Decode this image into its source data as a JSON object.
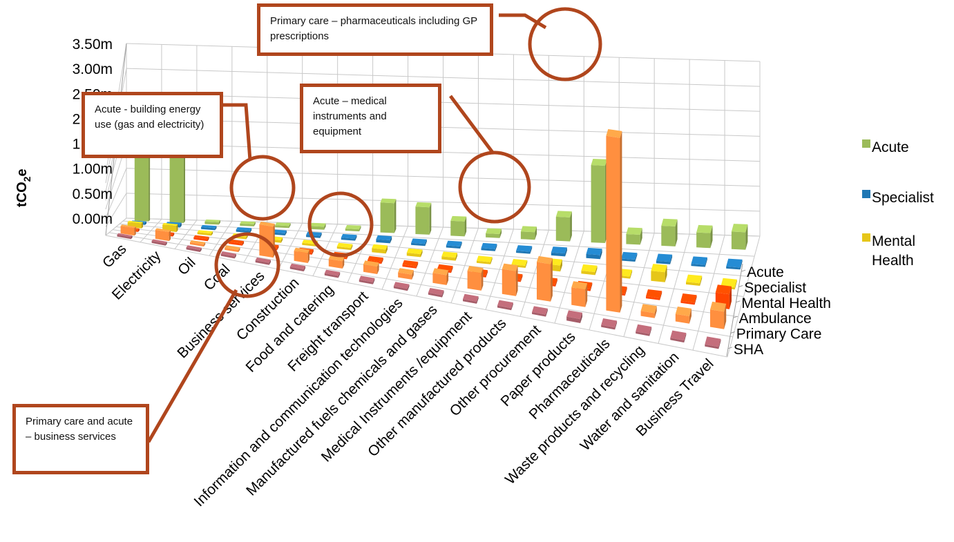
{
  "chart_data": {
    "type": "bar",
    "ylabel": "tCO₂e",
    "ylabel_main": "tCO",
    "ylabel_sub": "2",
    "ylabel_tail": "e",
    "ylim": [
      0,
      3500000
    ],
    "yticks": [
      "0.00m",
      "0.50m",
      "1.00m",
      "1.50m",
      "2.00m",
      "2.50m",
      "3.00m",
      "3.50m"
    ],
    "categories": [
      "Gas",
      "Electricity",
      "Oil",
      "Coal",
      "Business services",
      "Construction",
      "Food and catering",
      "Freight transport",
      "Information and communication technologies",
      "Manufactured fuels chemicals and gases",
      "Medical Instruments /equipment",
      "Other manufactured products",
      "Other procurement",
      "Paper products",
      "Pharmaceuticals",
      "Waste products and recycling",
      "Water and sanitation",
      "Business Travel"
    ],
    "series": [
      {
        "name": "Acute",
        "color": "#9bbb59",
        "values": [
          1300000,
          1400000,
          50000,
          20000,
          30000,
          60000,
          40000,
          600000,
          550000,
          300000,
          80000,
          150000,
          480000,
          1550000,
          200000,
          400000,
          300000,
          350000
        ]
      },
      {
        "name": "Specialist",
        "color": "#1f77b4",
        "values": [
          40000,
          60000,
          10000,
          5000,
          10000,
          20000,
          15000,
          60000,
          40000,
          40000,
          20000,
          30000,
          60000,
          80000,
          40000,
          50000,
          40000,
          30000
        ]
      },
      {
        "name": "Mental Health",
        "color": "#e6c619",
        "values": [
          100000,
          120000,
          20000,
          5000,
          50000,
          40000,
          30000,
          80000,
          60000,
          60000,
          30000,
          40000,
          120000,
          60000,
          40000,
          200000,
          50000,
          40000
        ]
      },
      {
        "name": "Ambulance",
        "color": "#ff4500",
        "values": [
          20000,
          30000,
          10000,
          5000,
          20000,
          20000,
          20000,
          40000,
          20000,
          20000,
          20000,
          20000,
          20000,
          40000,
          30000,
          30000,
          20000,
          300000
        ]
      },
      {
        "name": "Primary Care",
        "color": "#ff8f3f",
        "values": [
          150000,
          180000,
          40000,
          10000,
          620000,
          200000,
          150000,
          150000,
          100000,
          200000,
          350000,
          500000,
          750000,
          350000,
          3500000,
          100000,
          150000,
          350000
        ]
      },
      {
        "name": "SHA",
        "color": "#a65d69",
        "values": [
          10000,
          15000,
          5000,
          5000,
          15000,
          10000,
          10000,
          10000,
          10000,
          10000,
          10000,
          10000,
          20000,
          80000,
          15000,
          20000,
          20000,
          40000
        ]
      }
    ],
    "depth_labels": [
      "Acute",
      "Specialist",
      "Mental Health",
      "Ambulance",
      "Primary Care",
      "SHA"
    ],
    "legend": [
      "Acute",
      "Specialist",
      "Mental Health"
    ],
    "legend_position": "right",
    "grid": true
  },
  "annotations": [
    {
      "text": "Primary care – pharmaceuticals including GP prescriptions"
    },
    {
      "text": "Acute - building energy use (gas and electricity)"
    },
    {
      "text": "Acute – medical instruments and equipment"
    },
    {
      "text": "Primary care and acute – business services"
    }
  ]
}
